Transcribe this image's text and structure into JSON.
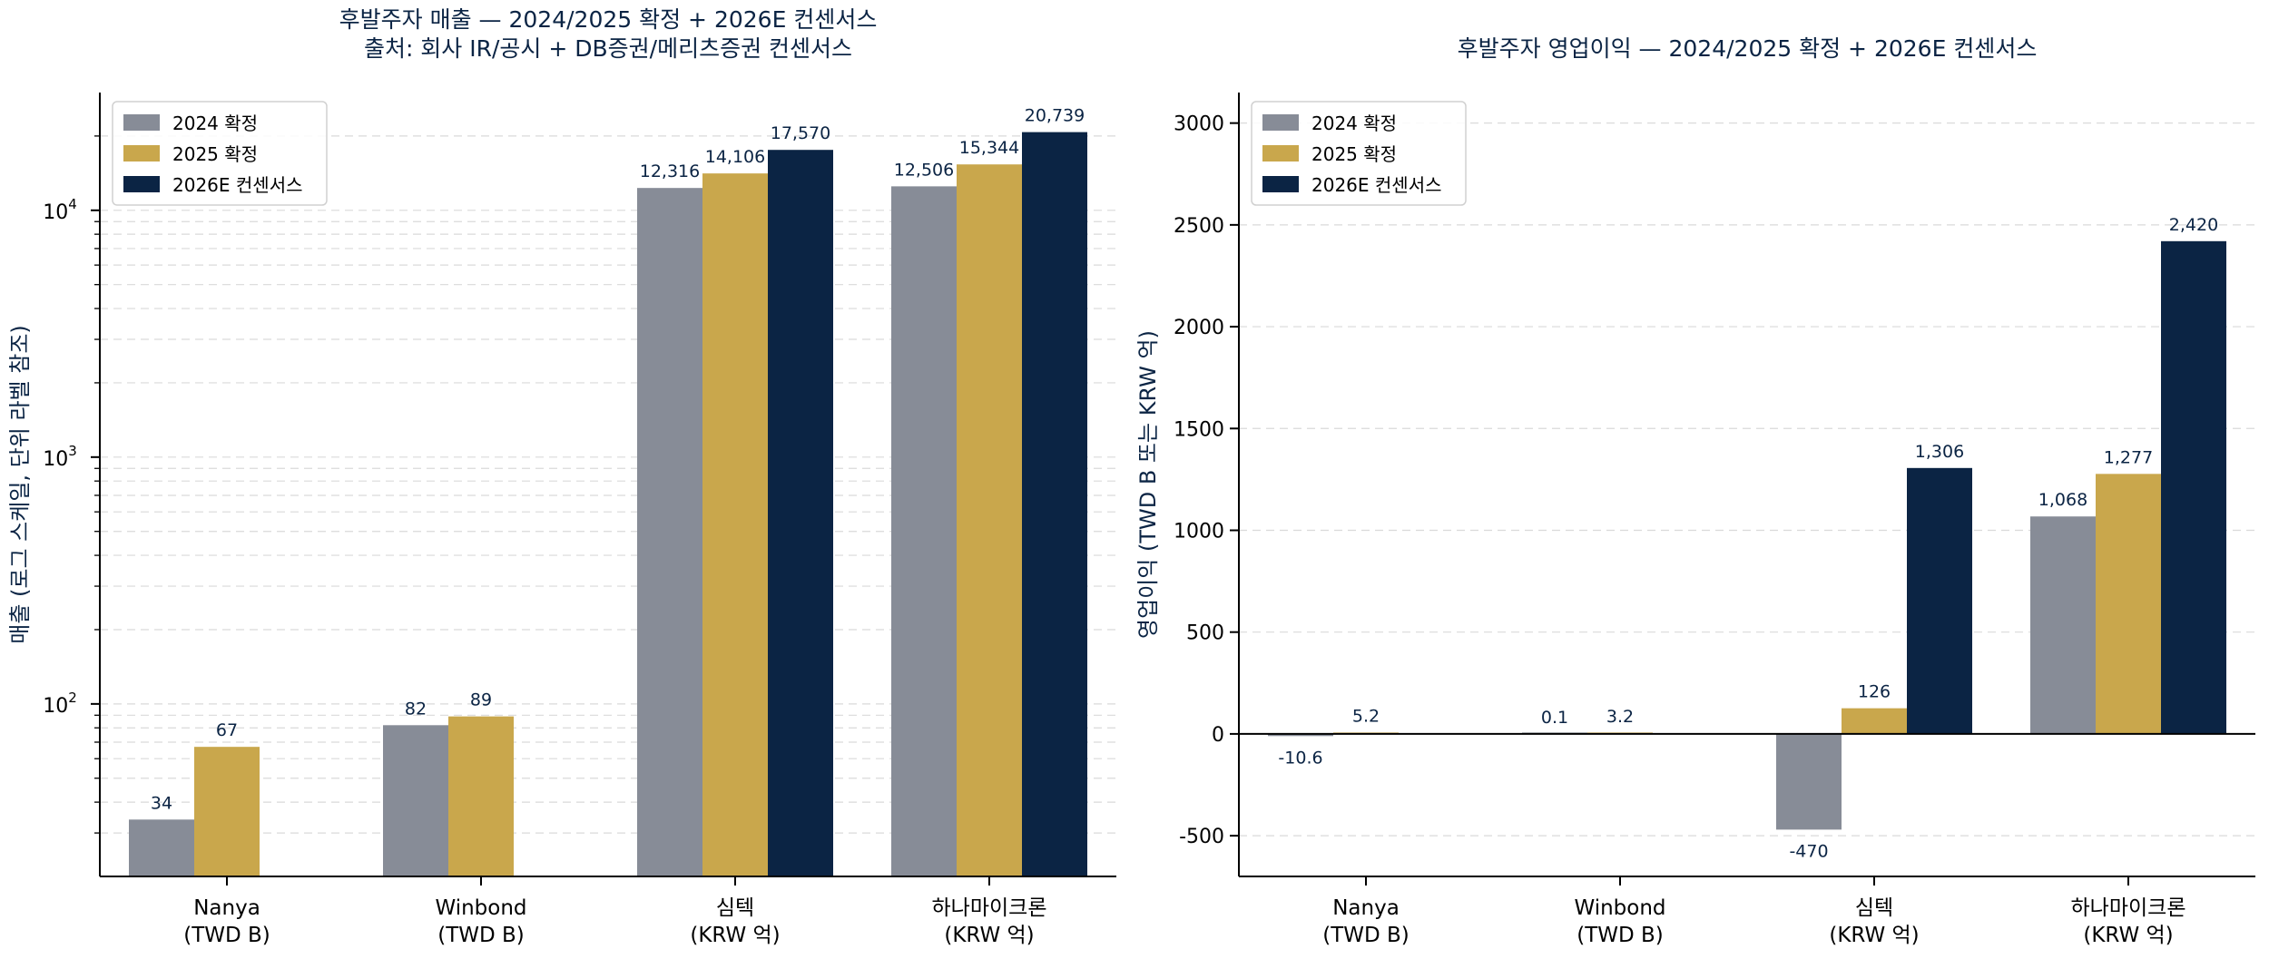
{
  "colors": {
    "s2024": "#878c97",
    "s2025": "#c9a74c",
    "s2026": "#0b2444",
    "title": "#0b2444",
    "axis": "#000000",
    "grid": "#dadada",
    "label": "#0b2444"
  },
  "chart_data": [
    {
      "type": "bar",
      "title": "후발주자 매출 — 2024/2025 확정 + 2026E 컨센서스",
      "subtitle": "출처: 회사 IR/공시 + DB증권/메리츠증권 컨센서스",
      "ylabel": "매출 (로그 스케일, 단위 라벨 참조)",
      "yscale": "log",
      "ylim": [
        20,
        30000
      ],
      "yticks": [
        {
          "value": 100,
          "base": "10",
          "exp": "2"
        },
        {
          "value": 1000,
          "base": "10",
          "exp": "3"
        },
        {
          "value": 10000,
          "base": "10",
          "exp": "4"
        }
      ],
      "grid": true,
      "legend_position": "upper-left",
      "categories": [
        {
          "line1": "Nanya",
          "line2": "(TWD B)"
        },
        {
          "line1": "Winbond",
          "line2": "(TWD B)"
        },
        {
          "line1": "심텍",
          "line2": "(KRW 억)"
        },
        {
          "line1": "하나마이크론",
          "line2": "(KRW 억)"
        }
      ],
      "series": [
        {
          "name": "2024 확정",
          "color_key": "s2024",
          "values": [
            34,
            82,
            12316,
            12506
          ],
          "labels": [
            "34",
            "82",
            "12,316",
            "12,506"
          ]
        },
        {
          "name": "2025 확정",
          "color_key": "s2025",
          "values": [
            67,
            89,
            14106,
            15344
          ],
          "labels": [
            "67",
            "89",
            "14,106",
            "15,344"
          ]
        },
        {
          "name": "2026E 컨센서스",
          "color_key": "s2026",
          "values": [
            null,
            null,
            17570,
            20739
          ],
          "labels": [
            "",
            "",
            "17,570",
            "20,739"
          ]
        }
      ]
    },
    {
      "type": "bar",
      "title": "후발주자 영업이익 — 2024/2025 확정 + 2026E 컨센서스",
      "subtitle": "",
      "ylabel": "영업이익 (TWD B 또는 KRW 억)",
      "yscale": "linear",
      "ylim": [
        -700,
        3150
      ],
      "yticks": [
        {
          "value": -500,
          "label": "-500"
        },
        {
          "value": 0,
          "label": "0"
        },
        {
          "value": 500,
          "label": "500"
        },
        {
          "value": 1000,
          "label": "1000"
        },
        {
          "value": 1500,
          "label": "1500"
        },
        {
          "value": 2000,
          "label": "2000"
        },
        {
          "value": 2500,
          "label": "2500"
        },
        {
          "value": 3000,
          "label": "3000"
        }
      ],
      "grid": true,
      "legend_position": "upper-left",
      "categories": [
        {
          "line1": "Nanya",
          "line2": "(TWD B)"
        },
        {
          "line1": "Winbond",
          "line2": "(TWD B)"
        },
        {
          "line1": "심텍",
          "line2": "(KRW 억)"
        },
        {
          "line1": "하나마이크론",
          "line2": "(KRW 억)"
        }
      ],
      "series": [
        {
          "name": "2024 확정",
          "color_key": "s2024",
          "values": [
            -10.6,
            0.1,
            -470,
            1068
          ],
          "labels": [
            "-10.6",
            "0.1",
            "-470",
            "1,068"
          ]
        },
        {
          "name": "2025 확정",
          "color_key": "s2025",
          "values": [
            5.2,
            3.2,
            126,
            1277
          ],
          "labels": [
            "5.2",
            "3.2",
            "126",
            "1,277"
          ]
        },
        {
          "name": "2026E 컨센서스",
          "color_key": "s2026",
          "values": [
            null,
            null,
            1306,
            2420
          ],
          "labels": [
            "",
            "",
            "1,306",
            "2,420"
          ]
        }
      ]
    }
  ]
}
